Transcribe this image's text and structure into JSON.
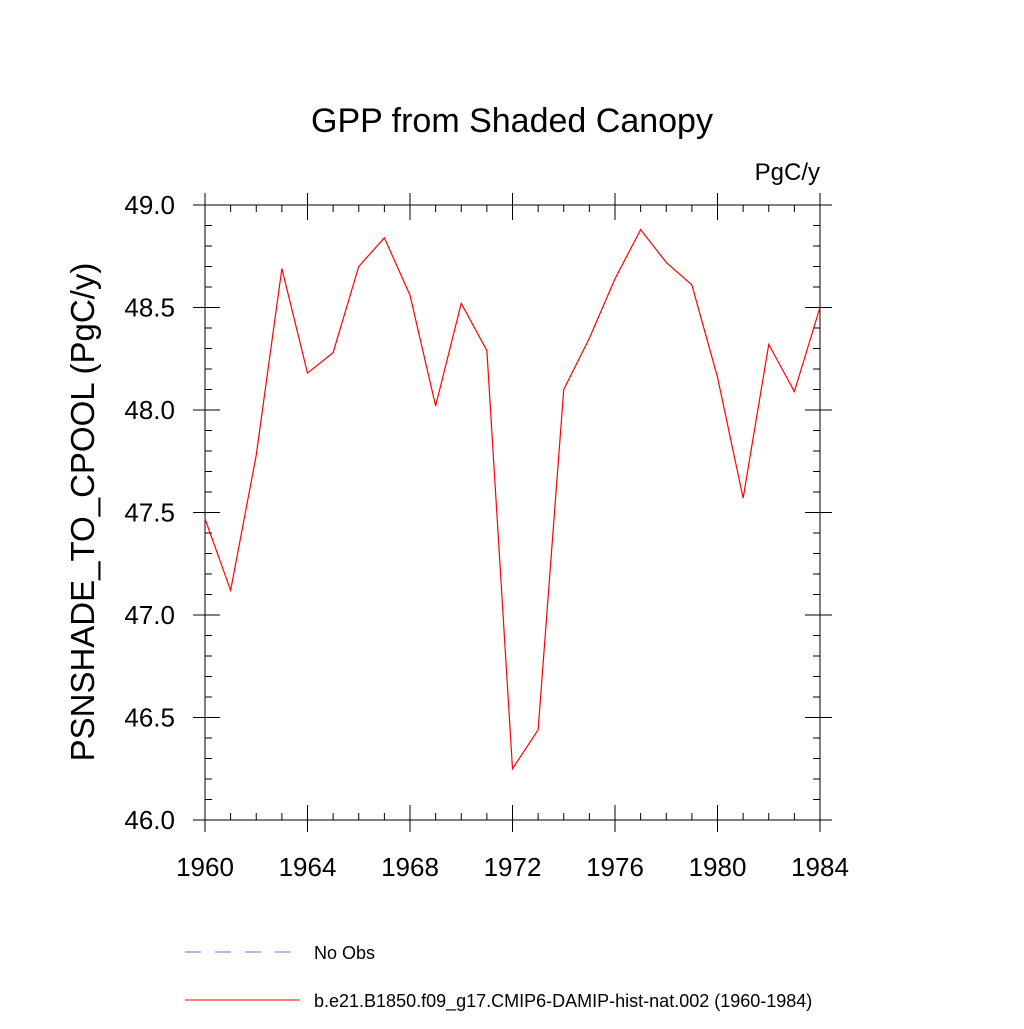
{
  "chart_data": {
    "type": "line",
    "title": "GPP from Shaded Canopy",
    "units_label": "PgC/y",
    "ylabel": "PSNSHADE_TO_CPOOL  (PgC/y)",
    "xlabel": "",
    "xlim": [
      1960,
      1984
    ],
    "ylim": [
      46.0,
      49.0
    ],
    "x_ticks": [
      1960,
      1964,
      1968,
      1972,
      1976,
      1980,
      1984
    ],
    "x_tick_labels": [
      "1960",
      "1964",
      "1968",
      "1972",
      "1976",
      "1980",
      "1984"
    ],
    "y_ticks": [
      46.0,
      46.5,
      47.0,
      47.5,
      48.0,
      48.5,
      49.0
    ],
    "y_tick_labels": [
      "46.0",
      "46.5",
      "47.0",
      "47.5",
      "48.0",
      "48.5",
      "49.0"
    ],
    "grid": false,
    "legend_position": "bottom",
    "series": [
      {
        "name": "b.e21.B1850.f09_g17.CMIP6-DAMIP-hist-nat.002 (1960-1984)",
        "color": "#ff0000",
        "style": "solid",
        "x": [
          1960,
          1961,
          1962,
          1963,
          1964,
          1965,
          1966,
          1967,
          1968,
          1969,
          1970,
          1971,
          1972,
          1973,
          1974,
          1975,
          1976,
          1977,
          1978,
          1979,
          1980,
          1981,
          1982,
          1983,
          1984
        ],
        "y": [
          47.47,
          47.12,
          47.78,
          48.69,
          48.18,
          48.28,
          48.7,
          48.84,
          48.56,
          48.02,
          48.52,
          48.29,
          46.25,
          46.44,
          48.1,
          48.35,
          48.64,
          48.88,
          48.72,
          48.61,
          48.16,
          47.57,
          48.32,
          48.09,
          48.5
        ]
      }
    ],
    "legend": [
      {
        "label": "No Obs",
        "color": "#7a6fd0",
        "style": "dashed"
      },
      {
        "label": "b.e21.B1850.f09_g17.CMIP6-DAMIP-hist-nat.002 (1960-1984)",
        "color": "#ff0000",
        "style": "solid"
      }
    ]
  }
}
